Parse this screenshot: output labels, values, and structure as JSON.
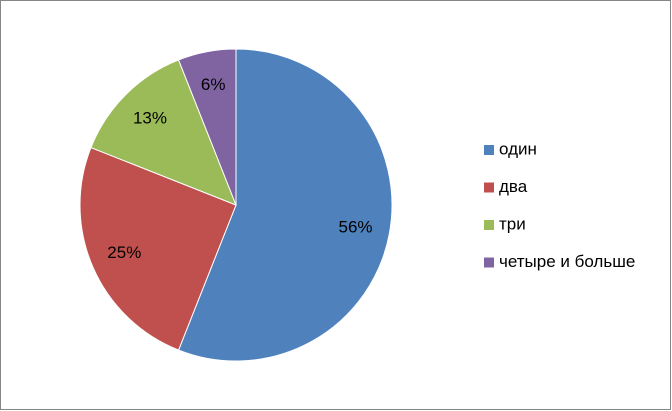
{
  "chart_data": {
    "type": "pie",
    "categories": [
      "один",
      "два",
      "три",
      "четыре и больше"
    ],
    "values": [
      56,
      25,
      13,
      6
    ],
    "value_labels": [
      "56%",
      "25%",
      "13%",
      "6%"
    ],
    "colors": [
      "#4f81bd",
      "#c0504d",
      "#9bbb59",
      "#8064a2"
    ],
    "legend": "right"
  }
}
